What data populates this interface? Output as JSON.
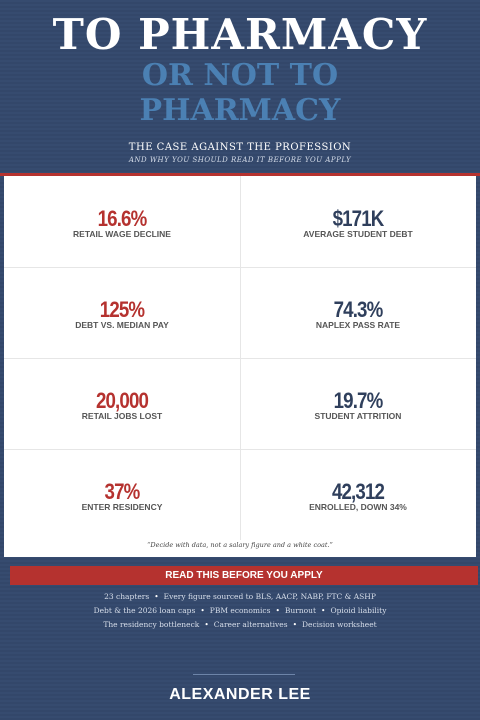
{
  "title": {
    "line1": "TO PHARMACY",
    "line2": "OR NOT TO",
    "line3": "PHARMACY"
  },
  "subtitle": "THE CASE AGAINST THE PROFESSION",
  "tagline": "AND WHY YOU SHOULD READ IT BEFORE YOU APPLY",
  "stats": [
    {
      "value": "16.6%",
      "label": "RETAIL WAGE DECLINE"
    },
    {
      "value": "$171K",
      "label": "AVERAGE STUDENT DEBT"
    },
    {
      "value": "125%",
      "label": "DEBT VS. MEDIAN PAY"
    },
    {
      "value": "74.3%",
      "label": "NAPLEX PASS RATE"
    },
    {
      "value": "20,000",
      "label": "RETAIL JOBS LOST"
    },
    {
      "value": "19.7%",
      "label": "STUDENT ATTRITION"
    },
    {
      "value": "37%",
      "label": "ENTER RESIDENCY"
    },
    {
      "value": "42,312",
      "label": "ENROLLED, DOWN 34%"
    }
  ],
  "quote": "“Decide with data, not a salary figure and a white coat.”",
  "button": "READ THIS BEFORE YOU APPLY",
  "details": [
    [
      "23 chapters",
      "Every figure sourced to BLS, AACP, NABP, FTC & ASHP"
    ],
    [
      "Debt & the 2026 loan caps",
      "PBM economics",
      "Burnout",
      "Opioid liability"
    ],
    [
      "The residency bottleneck",
      "Career alternatives",
      "Decision worksheet"
    ]
  ],
  "author": "ALEXANDER LEE"
}
